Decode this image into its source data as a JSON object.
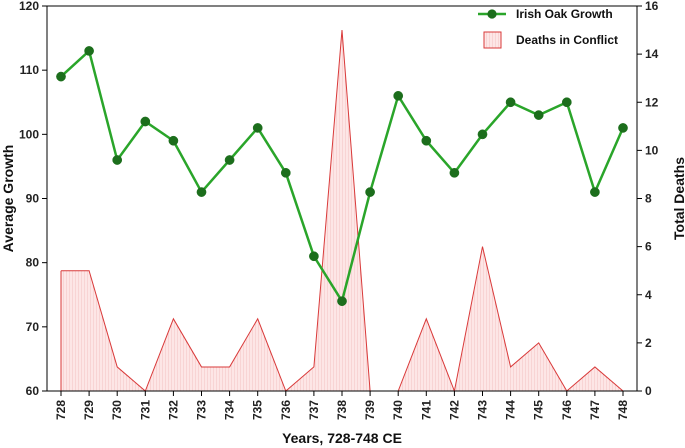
{
  "chart_data": {
    "type": "line",
    "title": "",
    "xlabel": "Years, 728-748 CE",
    "ylabel_left": "Average Growth",
    "ylabel_right": "Total Deaths",
    "x": [
      "728",
      "729",
      "730",
      "731",
      "732",
      "733",
      "734",
      "735",
      "736",
      "737",
      "738",
      "739",
      "740",
      "741",
      "742",
      "743",
      "744",
      "745",
      "746",
      "747",
      "748"
    ],
    "ylim_left": [
      60,
      120
    ],
    "yticks_left": [
      60,
      70,
      80,
      90,
      100,
      110,
      120
    ],
    "ylim_right": [
      0,
      16
    ],
    "yticks_right": [
      0,
      2,
      4,
      6,
      8,
      10,
      12,
      14,
      16
    ],
    "legend_position": "top-right",
    "grid": false,
    "series": [
      {
        "name": "Irish Oak Growth",
        "type": "line",
        "axis": "left",
        "color": "#2aa52a",
        "marker_color": "#1c6e1c",
        "values": [
          109,
          113,
          96,
          102,
          99,
          91,
          96,
          101,
          94,
          81,
          74,
          91,
          106,
          99,
          94,
          100,
          105,
          103,
          105,
          91,
          101
        ]
      },
      {
        "name": "Deaths in Conflict",
        "type": "area",
        "axis": "right",
        "color": "#d93a3a",
        "fill": "#fbe1e1",
        "values": [
          5,
          5,
          1,
          0,
          3,
          1,
          1,
          3,
          0,
          1,
          15,
          0,
          0,
          3,
          0,
          6,
          1,
          2,
          0,
          1,
          0
        ],
        "gaps_after": [
          11
        ]
      }
    ]
  }
}
